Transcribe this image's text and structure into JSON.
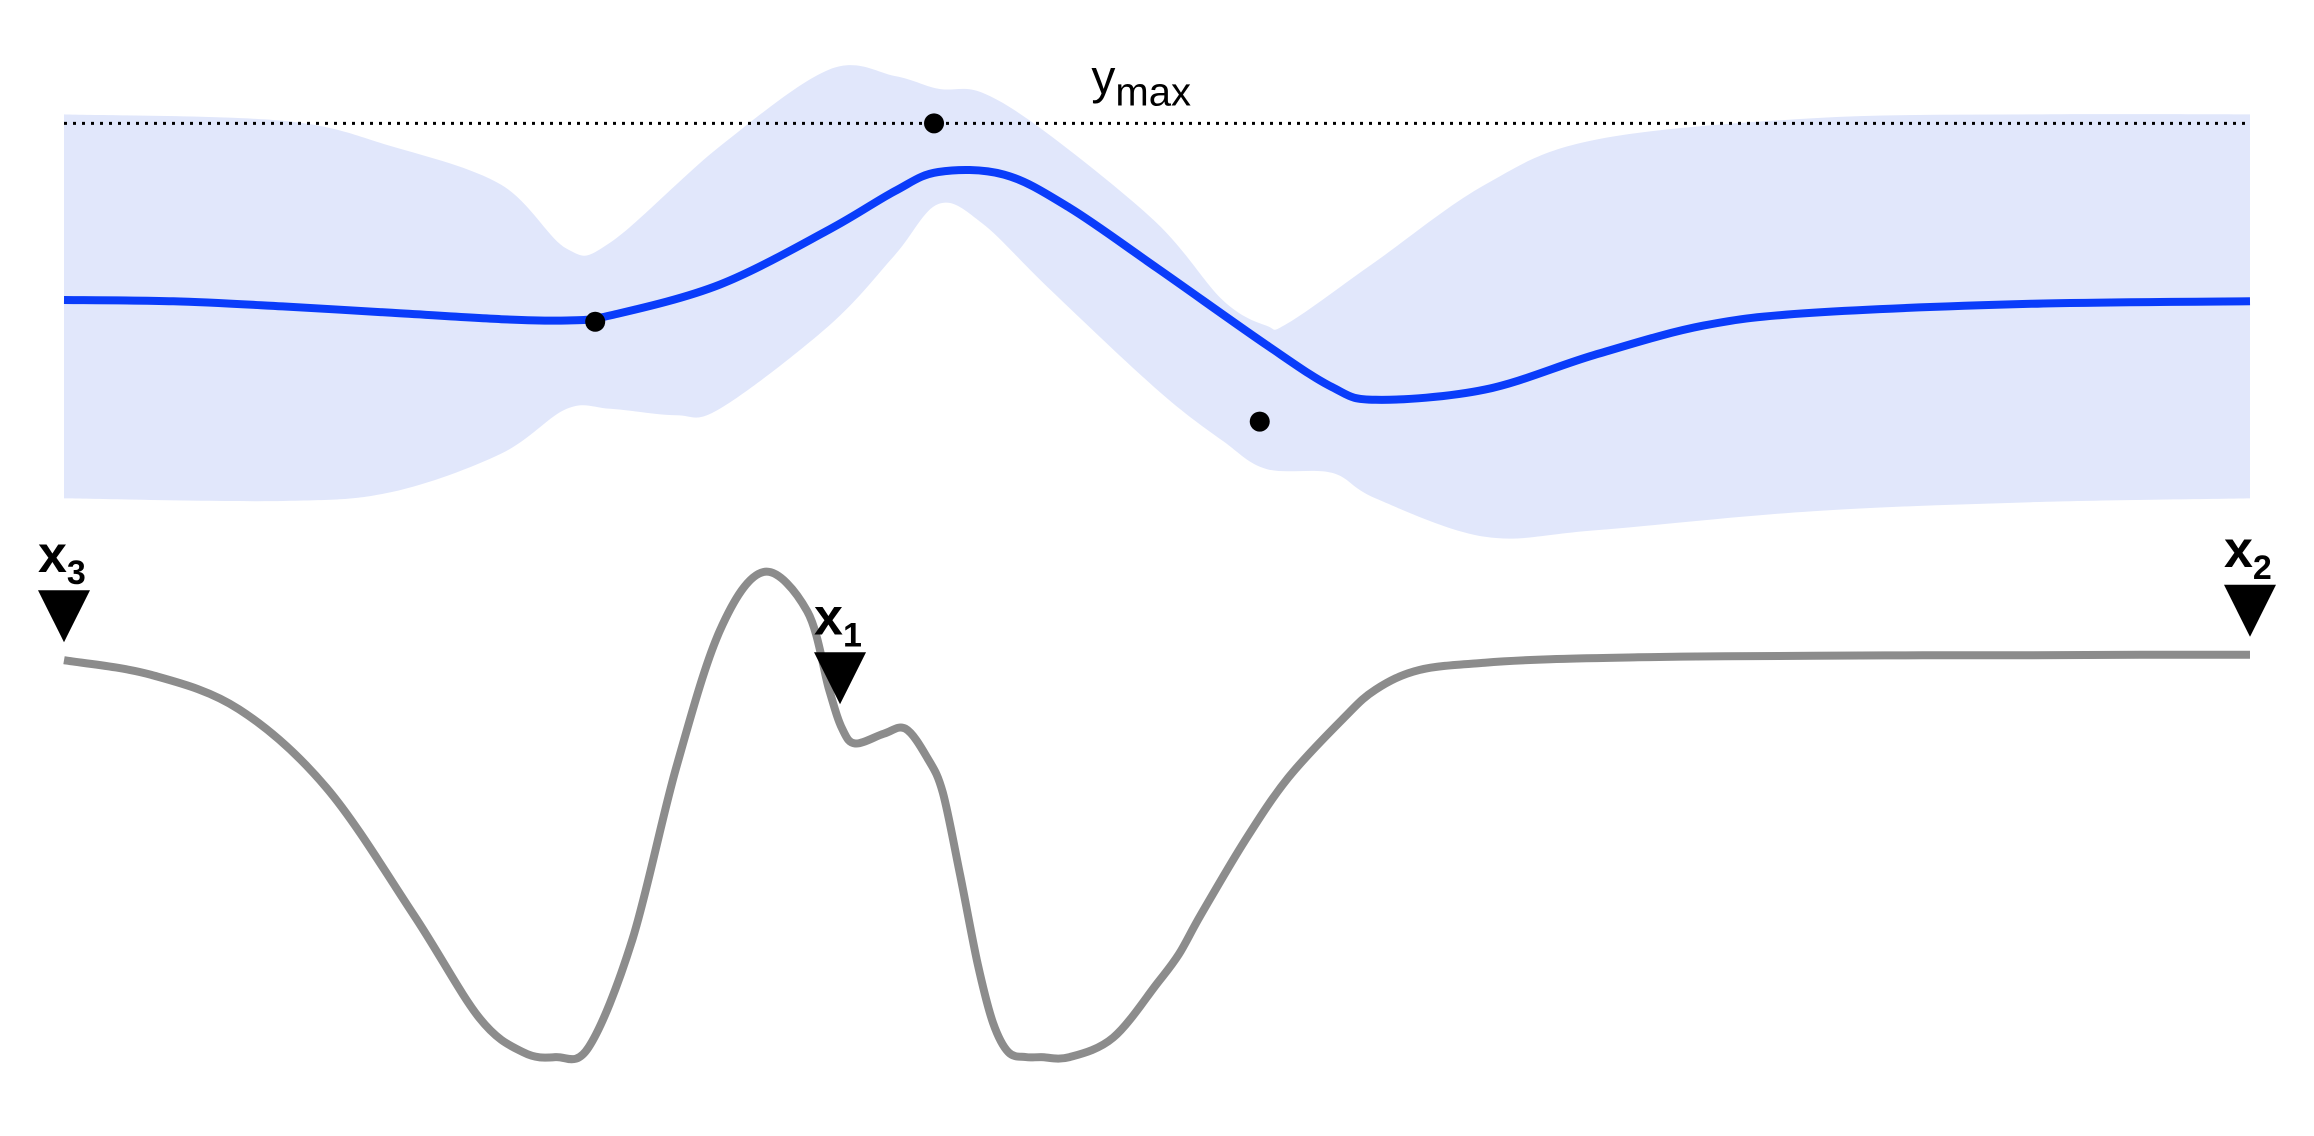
{
  "chart_data": [
    {
      "type": "line",
      "title": "",
      "description_role": "gaussian-process-posterior",
      "x_range": [
        0,
        1
      ],
      "y_range": [
        -1.6,
        1.6
      ],
      "grid": false,
      "threshold": {
        "name": "y_max",
        "label_main": "y",
        "label_sub": "max",
        "value": 1.38
      },
      "mean": {
        "name": "posterior mean",
        "x": [
          0,
          0.05,
          0.1,
          0.15,
          0.2,
          0.23,
          0.25,
          0.3,
          0.35,
          0.38,
          0.4,
          0.43,
          0.46,
          0.5,
          0.55,
          0.58,
          0.6,
          0.65,
          0.7,
          0.75,
          0.8,
          0.9,
          1.0
        ],
        "y": [
          0.0,
          -0.01,
          -0.05,
          -0.1,
          -0.15,
          -0.16,
          -0.12,
          0.12,
          0.55,
          0.85,
          1.0,
          0.98,
          0.72,
          0.25,
          -0.35,
          -0.68,
          -0.78,
          -0.7,
          -0.43,
          -0.2,
          -0.1,
          -0.03,
          -0.01
        ]
      },
      "band_upper": {
        "x": [
          0,
          0.1,
          0.15,
          0.2,
          0.23,
          0.25,
          0.3,
          0.35,
          0.38,
          0.4,
          0.42,
          0.45,
          0.5,
          0.53,
          0.55,
          0.56,
          0.6,
          0.65,
          0.7,
          0.8,
          0.9,
          1.0
        ],
        "y": [
          1.45,
          1.4,
          1.2,
          0.9,
          0.4,
          0.45,
          1.2,
          1.8,
          1.75,
          1.65,
          1.62,
          1.3,
          0.6,
          0.0,
          -0.2,
          -0.18,
          0.3,
          0.9,
          1.25,
          1.42,
          1.45,
          1.45
        ]
      },
      "band_lower": {
        "x": [
          0,
          0.1,
          0.15,
          0.2,
          0.23,
          0.25,
          0.28,
          0.3,
          0.35,
          0.38,
          0.4,
          0.42,
          0.45,
          0.5,
          0.53,
          0.55,
          0.58,
          0.6,
          0.65,
          0.7,
          0.8,
          0.9,
          1.0
        ],
        "y": [
          -1.55,
          -1.57,
          -1.5,
          -1.2,
          -0.85,
          -0.85,
          -0.9,
          -0.85,
          -0.2,
          0.35,
          0.75,
          0.6,
          0.1,
          -0.7,
          -1.1,
          -1.32,
          -1.35,
          -1.55,
          -1.85,
          -1.8,
          -1.65,
          -1.58,
          -1.55
        ]
      },
      "observations": [
        {
          "name": "observation-1",
          "x": 0.243,
          "y": -0.17
        },
        {
          "name": "observation-2",
          "x": 0.398,
          "y": 1.38
        },
        {
          "name": "observation-3",
          "x": 0.547,
          "y": -0.95
        }
      ],
      "colors": {
        "mean": "#0a3cfa",
        "band": "#e1e7fb",
        "points": "#000000",
        "threshold": "#000000"
      }
    },
    {
      "type": "line",
      "title": "",
      "description_role": "acquisition-function",
      "x_range": [
        0,
        1
      ],
      "y_range": [
        0,
        1
      ],
      "grid": false,
      "series": {
        "name": "acquisition",
        "x": [
          0,
          0.04,
          0.08,
          0.12,
          0.16,
          0.19,
          0.21,
          0.225,
          0.24,
          0.26,
          0.28,
          0.3,
          0.32,
          0.34,
          0.35,
          0.356,
          0.362,
          0.375,
          0.385,
          0.395,
          0.402,
          0.41,
          0.418,
          0.425,
          0.432,
          0.44,
          0.447,
          0.46,
          0.48,
          0.5,
          0.51,
          0.52,
          0.54,
          0.56,
          0.585,
          0.6,
          0.62,
          0.65,
          0.68,
          0.72,
          0.76,
          0.8,
          0.85,
          0.9,
          0.95,
          1.0
        ],
        "y": [
          0.82,
          0.79,
          0.72,
          0.56,
          0.3,
          0.09,
          0.02,
          0.01,
          0.03,
          0.25,
          0.6,
          0.88,
          1.0,
          0.92,
          0.76,
          0.68,
          0.65,
          0.67,
          0.68,
          0.62,
          0.55,
          0.38,
          0.2,
          0.08,
          0.02,
          0.01,
          0.01,
          0.01,
          0.05,
          0.16,
          0.22,
          0.3,
          0.45,
          0.58,
          0.7,
          0.76,
          0.8,
          0.815,
          0.822,
          0.826,
          0.828,
          0.829,
          0.83,
          0.83,
          0.831,
          0.831
        ]
      },
      "markers": [
        {
          "name": "x1",
          "label_main": "x",
          "label_sub": "1",
          "x": 0.355
        },
        {
          "name": "x2",
          "label_main": "x",
          "label_sub": "2",
          "x": 1.0
        },
        {
          "name": "x3",
          "label_main": "x",
          "label_sub": "3",
          "x": 0.0
        }
      ],
      "colors": {
        "series": "#8c8c8c",
        "markers": "#000000"
      }
    }
  ]
}
